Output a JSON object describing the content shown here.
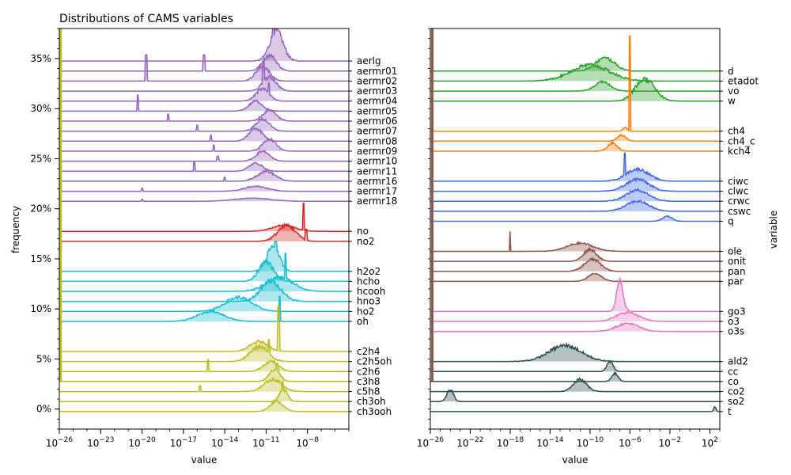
{
  "chart_data": [
    {
      "type": "ridgeline",
      "title": "Distributions of CAMS variables",
      "xlabel": "value",
      "ylabel": "frequency",
      "x_scale": "log",
      "xlim": [
        1e-26,
        1e-05
      ],
      "x_tick_labels": [
        {
          "value": 1e-26,
          "base": "10",
          "exp": "−26"
        },
        {
          "value": 1e-23,
          "base": "10",
          "exp": "−23"
        },
        {
          "value": 1e-20,
          "base": "10",
          "exp": "−20"
        },
        {
          "value": 1e-17,
          "base": "10",
          "exp": "−17"
        },
        {
          "value": 1e-14,
          "base": "10",
          "exp": "−14"
        },
        {
          "value": 1e-11,
          "base": "10",
          "exp": "−11"
        },
        {
          "value": 1e-08,
          "base": "10",
          "exp": "−8"
        }
      ],
      "ylim": [
        -0.02,
        0.38
      ],
      "y_ticks": [
        0,
        0.05,
        0.1,
        0.15,
        0.2,
        0.25,
        0.3,
        0.35
      ],
      "y_tick_labels": [
        "0%",
        "5%",
        "10%",
        "15%",
        "20%",
        "25%",
        "30%",
        "35%"
      ],
      "series": [
        {
          "name": "aerlg",
          "color": "#9467bd",
          "baseline": 0.3475,
          "x_peak": [
            -11,
            -9.5
          ],
          "peak_height": 0.03,
          "spike_x": -10.5,
          "spike_height": 0.04
        },
        {
          "name": "aermr01",
          "color": "#9467bd",
          "baseline": 0.3375,
          "x_peak": [
            -11.5,
            -10
          ],
          "peak_height": 0.016,
          "spike_x": -15.5,
          "spike_height": 0.016
        },
        {
          "name": "aermr02",
          "color": "#9467bd",
          "baseline": 0.3275,
          "x_peak": [
            -12,
            -10.5
          ],
          "peak_height": 0.015,
          "spike_x": -19.7,
          "spike_height": 0.026
        },
        {
          "name": "aermr03",
          "color": "#9467bd",
          "baseline": 0.3175,
          "x_peak": [
            -11.5,
            -10
          ],
          "peak_height": 0.014,
          "spike_x": -11.2,
          "spike_height": 0.03
        },
        {
          "name": "aermr04",
          "color": "#9467bd",
          "baseline": 0.3075,
          "x_peak": [
            -12,
            -10.5
          ],
          "peak_height": 0.012,
          "spike_x": -10.8,
          "spike_height": 0.018
        },
        {
          "name": "aermr05",
          "color": "#9467bd",
          "baseline": 0.2975,
          "x_peak": [
            -12.5,
            -11
          ],
          "peak_height": 0.01,
          "spike_x": -20.3,
          "spike_height": 0.016
        },
        {
          "name": "aermr06",
          "color": "#9467bd",
          "baseline": 0.2875,
          "x_peak": [
            -11.5,
            -10
          ],
          "peak_height": 0.011,
          "spike_x": -18.1,
          "spike_height": 0.007
        },
        {
          "name": "aermr07",
          "color": "#9467bd",
          "baseline": 0.2775,
          "x_peak": [
            -12,
            -10.5
          ],
          "peak_height": 0.012,
          "spike_x": -16,
          "spike_height": 0.006
        },
        {
          "name": "aermr08",
          "color": "#9467bd",
          "baseline": 0.2675,
          "x_peak": [
            -12.5,
            -11
          ],
          "peak_height": 0.013,
          "spike_x": -15,
          "spike_height": 0.006
        },
        {
          "name": "aermr09",
          "color": "#9467bd",
          "baseline": 0.2575,
          "x_peak": [
            -11.5,
            -10
          ],
          "peak_height": 0.012,
          "spike_x": -14.8,
          "spike_height": 0.006
        },
        {
          "name": "aermr10",
          "color": "#9467bd",
          "baseline": 0.2475,
          "x_peak": [
            -12,
            -10.5
          ],
          "peak_height": 0.01,
          "spike_x": -14.5,
          "spike_height": 0.005
        },
        {
          "name": "aermr11",
          "color": "#9467bd",
          "baseline": 0.2375,
          "x_peak": [
            -12.5,
            -11
          ],
          "peak_height": 0.008,
          "spike_x": -16.2,
          "spike_height": 0.01
        },
        {
          "name": "aermr16",
          "color": "#9467bd",
          "baseline": 0.2275,
          "x_peak": [
            -12,
            -10
          ],
          "peak_height": 0.01,
          "spike_x": -14,
          "spike_height": 0.004
        },
        {
          "name": "aermr17",
          "color": "#9467bd",
          "baseline": 0.2175,
          "x_peak": [
            -13,
            -10.5
          ],
          "peak_height": 0.005,
          "spike_x": -20,
          "spike_height": 0.003
        },
        {
          "name": "aermr18",
          "color": "#9467bd",
          "baseline": 0.2075,
          "x_peak": [
            -14,
            -10
          ],
          "peak_height": 0.003,
          "spike_x": -20,
          "spike_height": 0.002
        },
        {
          "name": "no",
          "color": "#d62728",
          "baseline": 0.1775,
          "x_peak": [
            -11,
            -8.5
          ],
          "peak_height": 0.006,
          "spike_x": -8.3,
          "spike_height": 0.028
        },
        {
          "name": "no2",
          "color": "#d62728",
          "baseline": 0.1675,
          "x_peak": [
            -10.5,
            -8.5
          ],
          "peak_height": 0.016,
          "spike_x": -8.1,
          "spike_height": 0.012
        },
        {
          "name": "h2o2",
          "color": "#17becf",
          "baseline": 0.1375,
          "x_peak": [
            -11.2,
            -9.8
          ],
          "peak_height": 0.025,
          "spike_x": -10.3,
          "spike_height": 0.03
        },
        {
          "name": "hcho",
          "color": "#17becf",
          "baseline": 0.1275,
          "x_peak": [
            -11.8,
            -10.2
          ],
          "peak_height": 0.02,
          "spike_x": -11,
          "spike_height": 0.015
        },
        {
          "name": "hcooh",
          "color": "#17becf",
          "baseline": 0.1175,
          "x_peak": [
            -11.5,
            -8.5
          ],
          "peak_height": 0.014,
          "spike_x": -9.6,
          "spike_height": 0.038
        },
        {
          "name": "hno3",
          "color": "#17becf",
          "baseline": 0.1075,
          "x_peak": [
            -11.8,
            -9.5
          ],
          "peak_height": 0.02,
          "spike_x": -10.8,
          "spike_height": 0.022
        },
        {
          "name": "ho2",
          "color": "#17becf",
          "baseline": 0.0975,
          "x_peak": [
            -14.5,
            -11.5
          ],
          "peak_height": 0.014,
          "spike_x": -12.5,
          "spike_height": 0.01
        },
        {
          "name": "oh",
          "color": "#17becf",
          "baseline": 0.0875,
          "x_peak": [
            -16.5,
            -13.5
          ],
          "peak_height": 0.01,
          "spike_x": -10,
          "spike_height": 0.025
        },
        {
          "name": "c2h4",
          "color": "#bcbd22",
          "baseline": 0.0575,
          "x_peak": [
            -12.5,
            -10.5
          ],
          "peak_height": 0.01,
          "spike_x": -10.1,
          "spike_height": 0.045
        },
        {
          "name": "c2h5oh",
          "color": "#bcbd22",
          "baseline": 0.0475,
          "x_peak": [
            -12.5,
            -10.5
          ],
          "peak_height": 0.015,
          "spike_x": -10.8,
          "spike_height": 0.022
        },
        {
          "name": "c2h6",
          "color": "#bcbd22",
          "baseline": 0.0375,
          "x_peak": [
            -11.5,
            -9.8
          ],
          "peak_height": 0.01,
          "spike_x": -15.2,
          "spike_height": 0.012
        },
        {
          "name": "c3h8",
          "color": "#bcbd22",
          "baseline": 0.0275,
          "x_peak": [
            -11,
            -9.8
          ],
          "peak_height": 0.012,
          "spike_x": -10.2,
          "spike_height": 0.018
        },
        {
          "name": "c5h8",
          "color": "#bcbd22",
          "baseline": 0.0175,
          "x_peak": [
            -11.5,
            -9.5
          ],
          "peak_height": 0.012,
          "spike_x": -15.8,
          "spike_height": 0.006
        },
        {
          "name": "ch3oh",
          "color": "#bcbd22",
          "baseline": 0.0075,
          "x_peak": [
            -10.2,
            -9.3
          ],
          "peak_height": 0.012,
          "spike_x": -9.8,
          "spike_height": 0.02
        },
        {
          "name": "ch3ooh",
          "color": "#bcbd22",
          "baseline": -0.0025,
          "x_peak": [
            -11,
            -9.5
          ],
          "peak_height": 0.01,
          "spike_x": -10.2,
          "spike_height": 0.006
        }
      ],
      "vertical_spike": {
        "x": -25.9,
        "color": "#bcbd22"
      }
    },
    {
      "type": "ridgeline",
      "ylabel": "variable",
      "xlabel": "value",
      "x_scale": "log",
      "xlim": [
        1e-26,
        1000.0
      ],
      "x_tick_labels": [
        {
          "value": 1e-26,
          "base": "10",
          "exp": "−26"
        },
        {
          "value": 1e-22,
          "base": "10",
          "exp": "−22"
        },
        {
          "value": 1e-18,
          "base": "10",
          "exp": "−18"
        },
        {
          "value": 1e-14,
          "base": "10",
          "exp": "−14"
        },
        {
          "value": 1e-10,
          "base": "10",
          "exp": "−10"
        },
        {
          "value": 1e-06,
          "base": "10",
          "exp": "−6"
        },
        {
          "value": 0.01,
          "base": "10",
          "exp": "−2"
        },
        {
          "value": 100.0,
          "base": "10",
          "exp": "2"
        }
      ],
      "series": [
        {
          "name": "d",
          "color": "#2ca02c",
          "baseline": 0.3375,
          "x_peak": [
            -10,
            -7
          ],
          "peak_height": 0.013
        },
        {
          "name": "etadot",
          "color": "#2ca02c",
          "baseline": 0.3275,
          "x_peak": [
            -13,
            -7
          ],
          "peak_height": 0.016
        },
        {
          "name": "vo",
          "color": "#2ca02c",
          "baseline": 0.3175,
          "x_peak": [
            -10,
            -7.5
          ],
          "peak_height": 0.009
        },
        {
          "name": "w",
          "color": "#2ca02c",
          "baseline": 0.3075,
          "x_peak": [
            -6,
            -3
          ],
          "peak_height": 0.022
        },
        {
          "name": "ch4",
          "color": "#ff7f0e",
          "baseline": 0.2775,
          "x_peak": [
            -6.8,
            -6.2
          ],
          "peak_height": 0.004,
          "spike_x": -6,
          "spike_height": 0.095
        },
        {
          "name": "ch4_c",
          "color": "#ff7f0e",
          "baseline": 0.2675,
          "x_peak": [
            -7.5,
            -6.2
          ],
          "peak_height": 0.006
        },
        {
          "name": "kch4",
          "color": "#ff7f0e",
          "baseline": 0.2575,
          "x_peak": [
            -8.5,
            -7
          ],
          "peak_height": 0.008
        },
        {
          "name": "ciwc",
          "color": "#4169e1",
          "baseline": 0.2275,
          "x_peak": [
            -7,
            -3.5
          ],
          "peak_height": 0.012,
          "spike_x": -6.5,
          "spike_height": 0.028
        },
        {
          "name": "clwc",
          "color": "#4169e1",
          "baseline": 0.2175,
          "x_peak": [
            -7,
            -3.5
          ],
          "peak_height": 0.012
        },
        {
          "name": "crwc",
          "color": "#4169e1",
          "baseline": 0.2075,
          "x_peak": [
            -7,
            -3.5
          ],
          "peak_height": 0.011
        },
        {
          "name": "cswc",
          "color": "#4169e1",
          "baseline": 0.1975,
          "x_peak": [
            -7,
            -3.5
          ],
          "peak_height": 0.01
        },
        {
          "name": "q",
          "color": "#4169e1",
          "baseline": 0.1875,
          "x_peak": [
            -3,
            -1.5
          ],
          "peak_height": 0.005
        },
        {
          "name": "ole",
          "color": "#8c564b",
          "baseline": 0.1575,
          "x_peak": [
            -13,
            -9
          ],
          "peak_height": 0.008,
          "spike_x": -18,
          "spike_height": 0.02
        },
        {
          "name": "onit",
          "color": "#8c564b",
          "baseline": 0.1475,
          "x_peak": [
            -11,
            -9
          ],
          "peak_height": 0.012
        },
        {
          "name": "pan",
          "color": "#8c564b",
          "baseline": 0.1375,
          "x_peak": [
            -11,
            -8.5
          ],
          "peak_height": 0.012
        },
        {
          "name": "par",
          "color": "#8c564b",
          "baseline": 0.1275,
          "x_peak": [
            -10.5,
            -8.5
          ],
          "peak_height": 0.008
        },
        {
          "name": "go3",
          "color": "#e377c2",
          "baseline": 0.0975,
          "x_peak": [
            -7.5,
            -6.5
          ],
          "peak_height": 0.03
        },
        {
          "name": "o3",
          "color": "#e377c2",
          "baseline": 0.0875,
          "x_peak": [
            -8,
            -4.5
          ],
          "peak_height": 0.009
        },
        {
          "name": "o3s",
          "color": "#e377c2",
          "baseline": 0.0775,
          "x_peak": [
            -8,
            -4.5
          ],
          "peak_height": 0.008
        },
        {
          "name": "ald2",
          "color": "#2f4f4f",
          "baseline": 0.0475,
          "x_peak": [
            -15,
            -10
          ],
          "peak_height": 0.016
        },
        {
          "name": "cc",
          "color": "#2f4f4f",
          "baseline": 0.0375,
          "x_peak": [
            -8.5,
            -7.5
          ],
          "peak_height": 0.01
        },
        {
          "name": "co",
          "color": "#2f4f4f",
          "baseline": 0.0275,
          "x_peak": [
            -8,
            -7
          ],
          "peak_height": 0.008
        },
        {
          "name": "co2",
          "color": "#2f4f4f",
          "baseline": 0.0175,
          "x_peak": [
            -12,
            -10
          ],
          "peak_height": 0.012
        },
        {
          "name": "so2",
          "color": "#2f4f4f",
          "baseline": 0.0075,
          "x_peak": [
            -24.5,
            -23.5
          ],
          "peak_height": 0.012
        },
        {
          "name": "t",
          "color": "#2f4f4f",
          "baseline": -0.0025,
          "x_peak": [
            2.4,
            2.6
          ],
          "peak_height": 0.005
        }
      ],
      "vertical_spike": {
        "x": -25.8,
        "color": "#8c564b"
      }
    }
  ]
}
